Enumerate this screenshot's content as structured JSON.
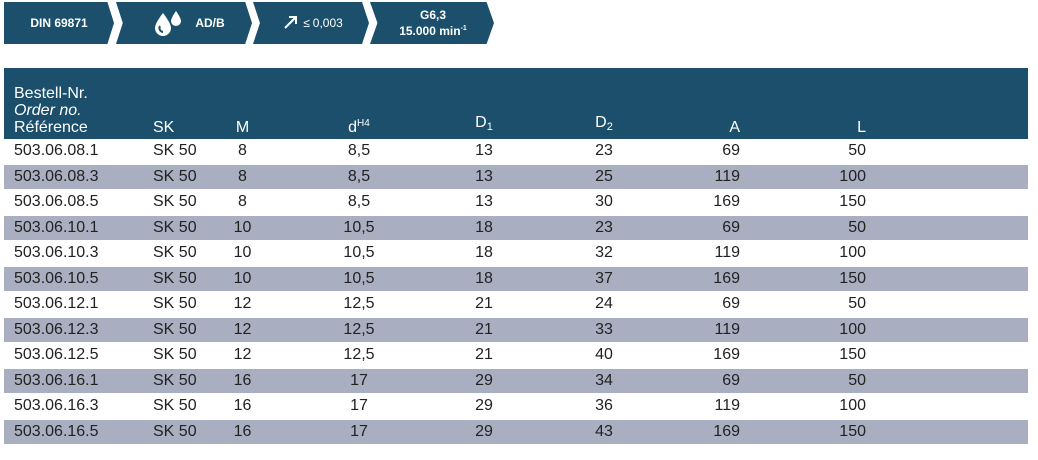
{
  "badges": {
    "standard": "DIN 69871",
    "coolant": "AD/B",
    "runout_symbol": "≤",
    "runout": "0,003",
    "balance_grade": "G6,3",
    "speed": "15.000 min",
    "speed_exp": "-1",
    "color": "#1b4f6b"
  },
  "table": {
    "headers": {
      "order_de": "Bestell-Nr.",
      "order_en": "Order no.",
      "order_fr": "Référence",
      "sk": "SK",
      "m": "M",
      "d": "d",
      "d_sup": "H4",
      "d1": "D",
      "d1_sub": "1",
      "d2": "D",
      "d2_sub": "2",
      "a": "A",
      "l": "L"
    },
    "rows": [
      {
        "order": "503.06.08.1",
        "sk": "SK 50",
        "m": "8",
        "d": "8,5",
        "d1": "13",
        "d2": "23",
        "a": "69",
        "l": "50"
      },
      {
        "order": "503.06.08.3",
        "sk": "SK 50",
        "m": "8",
        "d": "8,5",
        "d1": "13",
        "d2": "25",
        "a": "119",
        "l": "100"
      },
      {
        "order": "503.06.08.5",
        "sk": "SK 50",
        "m": "8",
        "d": "8,5",
        "d1": "13",
        "d2": "30",
        "a": "169",
        "l": "150"
      },
      {
        "order": "503.06.10.1",
        "sk": "SK 50",
        "m": "10",
        "d": "10,5",
        "d1": "18",
        "d2": "23",
        "a": "69",
        "l": "50"
      },
      {
        "order": "503.06.10.3",
        "sk": "SK 50",
        "m": "10",
        "d": "10,5",
        "d1": "18",
        "d2": "32",
        "a": "119",
        "l": "100"
      },
      {
        "order": "503.06.10.5",
        "sk": "SK 50",
        "m": "10",
        "d": "10,5",
        "d1": "18",
        "d2": "37",
        "a": "169",
        "l": "150"
      },
      {
        "order": "503.06.12.1",
        "sk": "SK 50",
        "m": "12",
        "d": "12,5",
        "d1": "21",
        "d2": "24",
        "a": "69",
        "l": "50"
      },
      {
        "order": "503.06.12.3",
        "sk": "SK 50",
        "m": "12",
        "d": "12,5",
        "d1": "21",
        "d2": "33",
        "a": "119",
        "l": "100"
      },
      {
        "order": "503.06.12.5",
        "sk": "SK 50",
        "m": "12",
        "d": "12,5",
        "d1": "21",
        "d2": "40",
        "a": "169",
        "l": "150"
      },
      {
        "order": "503.06.16.1",
        "sk": "SK 50",
        "m": "16",
        "d": "17",
        "d1": "29",
        "d2": "34",
        "a": "69",
        "l": "50"
      },
      {
        "order": "503.06.16.3",
        "sk": "SK 50",
        "m": "16",
        "d": "17",
        "d1": "29",
        "d2": "36",
        "a": "119",
        "l": "100"
      },
      {
        "order": "503.06.16.5",
        "sk": "SK 50",
        "m": "16",
        "d": "17",
        "d1": "29",
        "d2": "43",
        "a": "169",
        "l": "150"
      }
    ]
  }
}
